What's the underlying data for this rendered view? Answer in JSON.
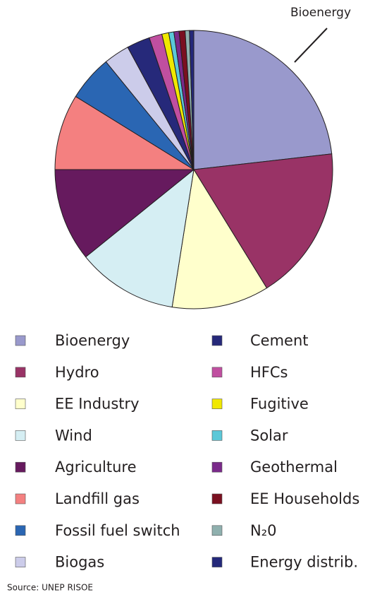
{
  "chart_data": {
    "type": "pie",
    "annotations": [
      "Bioenergy"
    ],
    "source": "Source: UNEP RISOE",
    "categories": [
      "Bioenergy",
      "Hydro",
      "EE Industry",
      "Wind",
      "Agriculture",
      "Landfill gas",
      "Fossil fuel switch",
      "Biogas",
      "Cement",
      "HFCs",
      "Fugitive",
      "Solar",
      "Geothermal",
      "EE Households",
      "N₂0",
      "Energy distrib."
    ],
    "values": [
      23.2,
      18,
      11.3,
      11.7,
      10.8,
      8.8,
      5.3,
      3,
      2.7,
      1.5,
      0.8,
      0.6,
      0.6,
      0.7,
      0.5,
      0.5
    ],
    "colors": [
      "#9999cc",
      "#993366",
      "#ffffcc",
      "#d5eef3",
      "#661a5e",
      "#f48080",
      "#2a66b3",
      "#ccccea",
      "#26297a",
      "#c04fa0",
      "#f0e800",
      "#5bc8d8",
      "#7a2a8a",
      "#7a1020",
      "#8fb0ae",
      "#24287a"
    ],
    "legend": "bottom"
  }
}
